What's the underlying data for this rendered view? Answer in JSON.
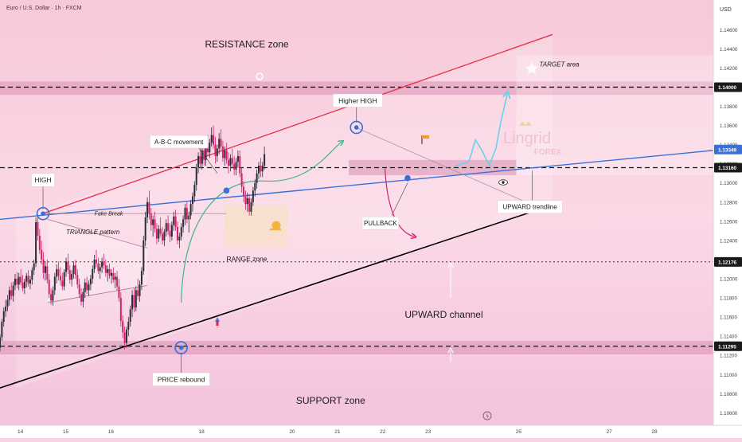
{
  "header": {
    "symbol_title": "Euro / U.S. Dollar · 1h · FXCM",
    "currency": "USD"
  },
  "colors": {
    "bull": "#2b2b3a",
    "bear": "#d4206a",
    "resistance_line": "#e8344a",
    "trendline": "#3a6fd8",
    "channel_support": "#000000",
    "forecast": "#66d4e8",
    "abc_curve": "#3fb58a",
    "pullback_curve": "#d4206a",
    "marker": "#3a6fd8"
  },
  "chart_data": {
    "type": "candlestick",
    "symbol": "Euro / U.S. Dollar",
    "timeframe": "1h",
    "broker": "FXCM",
    "y_axis": {
      "ticks": [
        1.146,
        1.144,
        1.142,
        1.14,
        1.138,
        1.136,
        1.134,
        1.132,
        1.13,
        1.128,
        1.126,
        1.124,
        1.122,
        1.12,
        1.118,
        1.116,
        1.114,
        1.112,
        1.11,
        1.108,
        1.106
      ],
      "tick_labels": [
        "1.14600",
        "1.14400",
        "1.14200",
        "1.14000",
        "1.13800",
        "1.13600",
        "1.13400",
        "1.13200",
        "1.13000",
        "1.12800",
        "1.12600",
        "1.12400",
        "1.12200",
        "1.12000",
        "1.11800",
        "1.11600",
        "1.11400",
        "1.11200",
        "1.11000",
        "1.10800",
        "1.10600"
      ],
      "range": [
        1.1047,
        1.1491
      ]
    },
    "x_axis": {
      "ticks": [
        14,
        15,
        16,
        18,
        20,
        21,
        22,
        23,
        25,
        27,
        28
      ],
      "tick_labels": [
        "14",
        "15",
        "16",
        "18",
        "20",
        "21",
        "22",
        "23",
        "25",
        "27",
        "28"
      ],
      "range": [
        13.55,
        29.3
      ]
    },
    "price_tags": [
      {
        "label": "1.14000",
        "value": 1.14,
        "style": "dark"
      },
      {
        "label": "1.13349",
        "value": 1.13349,
        "style": "blue"
      },
      {
        "label": "1.13160",
        "value": 1.1316,
        "style": "dark"
      },
      {
        "label": "1.12176",
        "value": 1.12176,
        "style": "dark"
      },
      {
        "label": "1.11295",
        "value": 1.11295,
        "style": "dark"
      }
    ],
    "levels": [
      {
        "value": 1.14,
        "dashes": "dashed"
      },
      {
        "value": 1.1316,
        "dashes": "dashed"
      },
      {
        "value": 1.12176,
        "dashes": "dotted"
      },
      {
        "value": 1.11295,
        "dashes": "dashed"
      }
    ],
    "zones": [
      {
        "name": "resistance",
        "x0": 13.55,
        "x1": 29.3,
        "y0": 1.1392,
        "y1": 1.1406
      },
      {
        "name": "support",
        "x0": 13.55,
        "x1": 29.3,
        "y0": 1.1121,
        "y1": 1.1135
      },
      {
        "name": "mid",
        "x0": 21.25,
        "x1": 24.95,
        "y0": 1.1308,
        "y1": 1.1324
      },
      {
        "name": "range",
        "x0": 18.5,
        "x1": 19.9,
        "y0": 1.1233,
        "y1": 1.1277
      },
      {
        "name": "target",
        "x0": 24.95,
        "x1": 29.3,
        "y0": 1.1308,
        "y1": 1.1433
      }
    ],
    "lines": [
      {
        "name": "resistance-line",
        "x0": 14.5,
        "y0": 1.1268,
        "x1": 25.75,
        "y1": 1.1455
      },
      {
        "name": "upward-trendline",
        "x0": 13.55,
        "y0": 1.1262,
        "x1": 29.3,
        "y1": 1.1334
      },
      {
        "name": "channel-support",
        "x0": 13.55,
        "y0": 1.1086,
        "x1": 25.75,
        "y1": 1.1277
      },
      {
        "name": "triangle-upper",
        "x0": 14.6,
        "y0": 1.1262,
        "x1": 16.8,
        "y1": 1.1232
      },
      {
        "name": "triangle-lower",
        "x0": 14.6,
        "y0": 1.1175,
        "x1": 16.8,
        "y1": 1.1193
      },
      {
        "name": "fake-break-line",
        "x0": 14.5,
        "y0": 1.1268,
        "x1": 18.55,
        "y1": 1.1268
      },
      {
        "name": "higher-high-line",
        "x0": 21.45,
        "y0": 1.1357,
        "x1": 25.6,
        "y1": 1.1271
      }
    ],
    "markers": [
      {
        "name": "high-marker",
        "x": 14.5,
        "y": 1.1268
      },
      {
        "name": "higher-high-marker",
        "x": 21.42,
        "y": 1.1358
      },
      {
        "name": "price-rebound-marker",
        "x": 17.55,
        "y": 1.1128
      },
      {
        "name": "range-dot",
        "x": 18.55,
        "y": 1.1292
      },
      {
        "name": "pullback-dot",
        "x": 22.55,
        "y": 1.1305
      }
    ],
    "forecast_path": [
      [
        23.6,
        1.1318
      ],
      [
        23.9,
        1.1322
      ],
      [
        24.05,
        1.1345
      ],
      [
        24.2,
        1.1333
      ],
      [
        24.35,
        1.1318
      ],
      [
        24.5,
        1.1336
      ],
      [
        24.6,
        1.1362
      ],
      [
        24.75,
        1.1393
      ]
    ],
    "annotations": [
      {
        "text": "RESISTANCE zone",
        "x": 19.0,
        "y": 1.1445,
        "size": 12,
        "style": "plain"
      },
      {
        "text": "TARGET area",
        "x": 25.9,
        "y": 1.1424,
        "size": 8,
        "style": "italic"
      },
      {
        "text": "Higher HIGH",
        "x": 21.45,
        "y": 1.1386,
        "size": 8.5,
        "style": "box"
      },
      {
        "text": "A-B-C movement",
        "x": 17.5,
        "y": 1.1343,
        "size": 8,
        "style": "box"
      },
      {
        "text": "HIGH",
        "x": 14.5,
        "y": 1.1303,
        "size": 8.5,
        "style": "box"
      },
      {
        "text": "Fake Break",
        "x": 15.95,
        "y": 1.1268,
        "size": 7,
        "style": "italic"
      },
      {
        "text": "TRIANGLE pattern",
        "x": 15.6,
        "y": 1.1249,
        "size": 8,
        "style": "italic"
      },
      {
        "text": "RANGE zone",
        "x": 19.0,
        "y": 1.1221,
        "size": 8.5,
        "style": "plain"
      },
      {
        "text": "PULLBACK",
        "x": 21.95,
        "y": 1.1258,
        "size": 8,
        "style": "box"
      },
      {
        "text": "UPWARD trendline",
        "x": 25.25,
        "y": 1.1275,
        "size": 8,
        "style": "box"
      },
      {
        "text": "UPWARD channel",
        "x": 23.35,
        "y": 1.1163,
        "size": 12,
        "style": "plain"
      },
      {
        "text": "PRICE rebound",
        "x": 17.55,
        "y": 1.1095,
        "size": 8.5,
        "style": "box"
      },
      {
        "text": "SUPPORT zone",
        "x": 20.85,
        "y": 1.1073,
        "size": 12,
        "style": "plain"
      }
    ],
    "watermark": {
      "brand": "Lingrid",
      "sub": "FOREX"
    },
    "candles_ohlc_start_day": 13.55,
    "candle_step": 0.0417,
    "candles": [
      [
        1.1128,
        1.1142,
        1.1124,
        1.1139
      ],
      [
        1.1139,
        1.1158,
        1.1135,
        1.1155
      ],
      [
        1.1155,
        1.117,
        1.115,
        1.1166
      ],
      [
        1.1166,
        1.1178,
        1.116,
        1.1171
      ],
      [
        1.1171,
        1.1183,
        1.1166,
        1.1178
      ],
      [
        1.1178,
        1.1192,
        1.1172,
        1.1188
      ],
      [
        1.1188,
        1.1196,
        1.1178,
        1.1182
      ],
      [
        1.1182,
        1.1197,
        1.1176,
        1.1193
      ],
      [
        1.1193,
        1.1205,
        1.1188,
        1.12
      ],
      [
        1.12,
        1.1207,
        1.119,
        1.1194
      ],
      [
        1.1194,
        1.1206,
        1.1188,
        1.1202
      ],
      [
        1.1202,
        1.121,
        1.1193,
        1.1196
      ],
      [
        1.1196,
        1.1204,
        1.1187,
        1.119
      ],
      [
        1.119,
        1.12,
        1.1184,
        1.1197
      ],
      [
        1.1197,
        1.1206,
        1.1191,
        1.1203
      ],
      [
        1.1203,
        1.1209,
        1.1192,
        1.1195
      ],
      [
        1.1195,
        1.1203,
        1.1189,
        1.1199
      ],
      [
        1.1199,
        1.1212,
        1.1194,
        1.1209
      ],
      [
        1.1209,
        1.122,
        1.1204,
        1.1216
      ],
      [
        1.1216,
        1.1264,
        1.1212,
        1.1259
      ],
      [
        1.1259,
        1.1267,
        1.124,
        1.1245
      ],
      [
        1.1245,
        1.1252,
        1.1226,
        1.123
      ],
      [
        1.123,
        1.124,
        1.1215,
        1.122
      ],
      [
        1.122,
        1.1228,
        1.12,
        1.1206
      ],
      [
        1.1206,
        1.1218,
        1.1198,
        1.1213
      ],
      [
        1.1213,
        1.122,
        1.1195,
        1.1199
      ],
      [
        1.1199,
        1.1205,
        1.118,
        1.1184
      ],
      [
        1.1184,
        1.119,
        1.1173,
        1.1177
      ],
      [
        1.1177,
        1.1192,
        1.1172,
        1.1188
      ],
      [
        1.1188,
        1.1206,
        1.1183,
        1.1202
      ],
      [
        1.1202,
        1.1215,
        1.1195,
        1.121
      ],
      [
        1.121,
        1.1218,
        1.1198,
        1.1203
      ],
      [
        1.1203,
        1.1212,
        1.1193,
        1.1198
      ],
      [
        1.1198,
        1.1206,
        1.1188,
        1.1192
      ],
      [
        1.1192,
        1.121,
        1.1188,
        1.1207
      ],
      [
        1.1207,
        1.1222,
        1.1202,
        1.1218
      ],
      [
        1.1218,
        1.1226,
        1.1205,
        1.1209
      ],
      [
        1.1209,
        1.1214,
        1.1195,
        1.1199
      ],
      [
        1.1199,
        1.1209,
        1.1192,
        1.1205
      ],
      [
        1.1205,
        1.1218,
        1.12,
        1.1214
      ],
      [
        1.1214,
        1.122,
        1.12,
        1.1204
      ],
      [
        1.1204,
        1.121,
        1.119,
        1.1194
      ],
      [
        1.1194,
        1.12,
        1.118,
        1.1184
      ],
      [
        1.1184,
        1.119,
        1.1172,
        1.1176
      ],
      [
        1.1176,
        1.119,
        1.117,
        1.1186
      ],
      [
        1.1186,
        1.12,
        1.118,
        1.1196
      ],
      [
        1.1196,
        1.1202,
        1.1184,
        1.1188
      ],
      [
        1.1188,
        1.1198,
        1.1182,
        1.1194
      ],
      [
        1.1194,
        1.1204,
        1.1188,
        1.12
      ],
      [
        1.12,
        1.1214,
        1.1195,
        1.121
      ],
      [
        1.121,
        1.1225,
        1.1206,
        1.122
      ],
      [
        1.122,
        1.123,
        1.1212,
        1.1216
      ],
      [
        1.1216,
        1.1222,
        1.1205,
        1.1208
      ],
      [
        1.1208,
        1.1216,
        1.12,
        1.1212
      ],
      [
        1.1212,
        1.1222,
        1.1206,
        1.1218
      ],
      [
        1.1218,
        1.1226,
        1.121,
        1.1214
      ],
      [
        1.1214,
        1.122,
        1.1202,
        1.1206
      ],
      [
        1.1206,
        1.1214,
        1.1197,
        1.121
      ],
      [
        1.121,
        1.1216,
        1.12,
        1.1203
      ],
      [
        1.1203,
        1.121,
        1.1195,
        1.1206
      ],
      [
        1.1206,
        1.1212,
        1.1196,
        1.1199
      ],
      [
        1.1199,
        1.1206,
        1.119,
        1.1202
      ],
      [
        1.1202,
        1.1208,
        1.1188,
        1.1192
      ],
      [
        1.1192,
        1.12,
        1.1176,
        1.118
      ],
      [
        1.118,
        1.1186,
        1.115,
        1.1156
      ],
      [
        1.1156,
        1.1162,
        1.1138,
        1.1144
      ],
      [
        1.1144,
        1.115,
        1.1126,
        1.1133
      ],
      [
        1.1133,
        1.115,
        1.1128,
        1.1147
      ],
      [
        1.1147,
        1.116,
        1.114,
        1.1155
      ],
      [
        1.1155,
        1.1172,
        1.115,
        1.1168
      ],
      [
        1.1168,
        1.1188,
        1.116,
        1.1183
      ],
      [
        1.1183,
        1.119,
        1.1165,
        1.117
      ],
      [
        1.117,
        1.1192,
        1.1166,
        1.1188
      ],
      [
        1.1188,
        1.12,
        1.1178,
        1.1182
      ],
      [
        1.1182,
        1.1198,
        1.1176,
        1.1194
      ],
      [
        1.1194,
        1.1212,
        1.1188,
        1.1208
      ],
      [
        1.1208,
        1.1245,
        1.1204,
        1.124
      ],
      [
        1.124,
        1.127,
        1.1234,
        1.1264
      ],
      [
        1.1264,
        1.1285,
        1.1258,
        1.128
      ],
      [
        1.128,
        1.1292,
        1.1262,
        1.1268
      ],
      [
        1.1268,
        1.1274,
        1.125,
        1.1256
      ],
      [
        1.1256,
        1.1266,
        1.1244,
        1.1262
      ],
      [
        1.1262,
        1.127,
        1.1248,
        1.1252
      ],
      [
        1.1252,
        1.1258,
        1.1236,
        1.1242
      ],
      [
        1.1242,
        1.1256,
        1.1238,
        1.1252
      ],
      [
        1.1252,
        1.1264,
        1.1244,
        1.1247
      ],
      [
        1.1247,
        1.1254,
        1.1236,
        1.124
      ],
      [
        1.124,
        1.1252,
        1.1234,
        1.1249
      ],
      [
        1.1249,
        1.1262,
        1.1244,
        1.1258
      ],
      [
        1.1258,
        1.1266,
        1.1246,
        1.125
      ],
      [
        1.125,
        1.1258,
        1.1238,
        1.1244
      ],
      [
        1.1244,
        1.126,
        1.124,
        1.1256
      ],
      [
        1.1256,
        1.127,
        1.125,
        1.1265
      ],
      [
        1.1265,
        1.1272,
        1.125,
        1.1254
      ],
      [
        1.1254,
        1.126,
        1.1236,
        1.124
      ],
      [
        1.124,
        1.1248,
        1.1232,
        1.1244
      ],
      [
        1.1244,
        1.1258,
        1.124,
        1.1254
      ],
      [
        1.1254,
        1.1266,
        1.1248,
        1.1262
      ],
      [
        1.1262,
        1.1278,
        1.1256,
        1.1274
      ],
      [
        1.1274,
        1.128,
        1.1258,
        1.1262
      ],
      [
        1.1262,
        1.127,
        1.1248,
        1.1266
      ],
      [
        1.1266,
        1.1282,
        1.1262,
        1.1278
      ],
      [
        1.1278,
        1.129,
        1.127,
        1.1286
      ],
      [
        1.1286,
        1.1302,
        1.128,
        1.1298
      ],
      [
        1.1298,
        1.132,
        1.1292,
        1.1316
      ],
      [
        1.1316,
        1.1332,
        1.131,
        1.1328
      ],
      [
        1.1328,
        1.134,
        1.1315,
        1.132
      ],
      [
        1.132,
        1.1338,
        1.1314,
        1.1334
      ],
      [
        1.1334,
        1.1345,
        1.1318,
        1.1324
      ],
      [
        1.1324,
        1.134,
        1.1318,
        1.1336
      ],
      [
        1.1336,
        1.135,
        1.1328,
        1.1332
      ],
      [
        1.1332,
        1.1346,
        1.1326,
        1.1342
      ],
      [
        1.1342,
        1.1358,
        1.1338,
        1.135
      ],
      [
        1.135,
        1.136,
        1.1336,
        1.134
      ],
      [
        1.134,
        1.1348,
        1.132,
        1.1328
      ],
      [
        1.1328,
        1.134,
        1.1322,
        1.1336
      ],
      [
        1.1336,
        1.1352,
        1.133,
        1.1346
      ],
      [
        1.1346,
        1.1356,
        1.1334,
        1.1338
      ],
      [
        1.1338,
        1.1344,
        1.1322,
        1.1326
      ],
      [
        1.1326,
        1.1338,
        1.1318,
        1.1334
      ],
      [
        1.1334,
        1.1342,
        1.132,
        1.1324
      ],
      [
        1.1324,
        1.1332,
        1.131,
        1.1318
      ],
      [
        1.1318,
        1.133,
        1.1312,
        1.1326
      ],
      [
        1.1326,
        1.1336,
        1.1316,
        1.132
      ],
      [
        1.132,
        1.1328,
        1.1308,
        1.1314
      ],
      [
        1.1314,
        1.1326,
        1.1308,
        1.1322
      ],
      [
        1.1322,
        1.1334,
        1.1316,
        1.1328
      ],
      [
        1.1328,
        1.1334,
        1.1306,
        1.131
      ],
      [
        1.131,
        1.1316,
        1.129,
        1.1296
      ],
      [
        1.1296,
        1.1302,
        1.128,
        1.1286
      ],
      [
        1.1286,
        1.1292,
        1.1272,
        1.1278
      ],
      [
        1.1278,
        1.129,
        1.127,
        1.1284
      ],
      [
        1.1284,
        1.1288,
        1.1266,
        1.127
      ],
      [
        1.127,
        1.1284,
        1.1266,
        1.128
      ],
      [
        1.128,
        1.1296,
        1.1276,
        1.1292
      ],
      [
        1.1292,
        1.1304,
        1.1286,
        1.13
      ],
      [
        1.13,
        1.1314,
        1.1294,
        1.131
      ],
      [
        1.131,
        1.1322,
        1.1304,
        1.1318
      ],
      [
        1.1318,
        1.1326,
        1.1306,
        1.1312
      ],
      [
        1.1312,
        1.1322,
        1.1306,
        1.1318
      ],
      [
        1.1318,
        1.1338,
        1.1314,
        1.133
      ]
    ]
  }
}
